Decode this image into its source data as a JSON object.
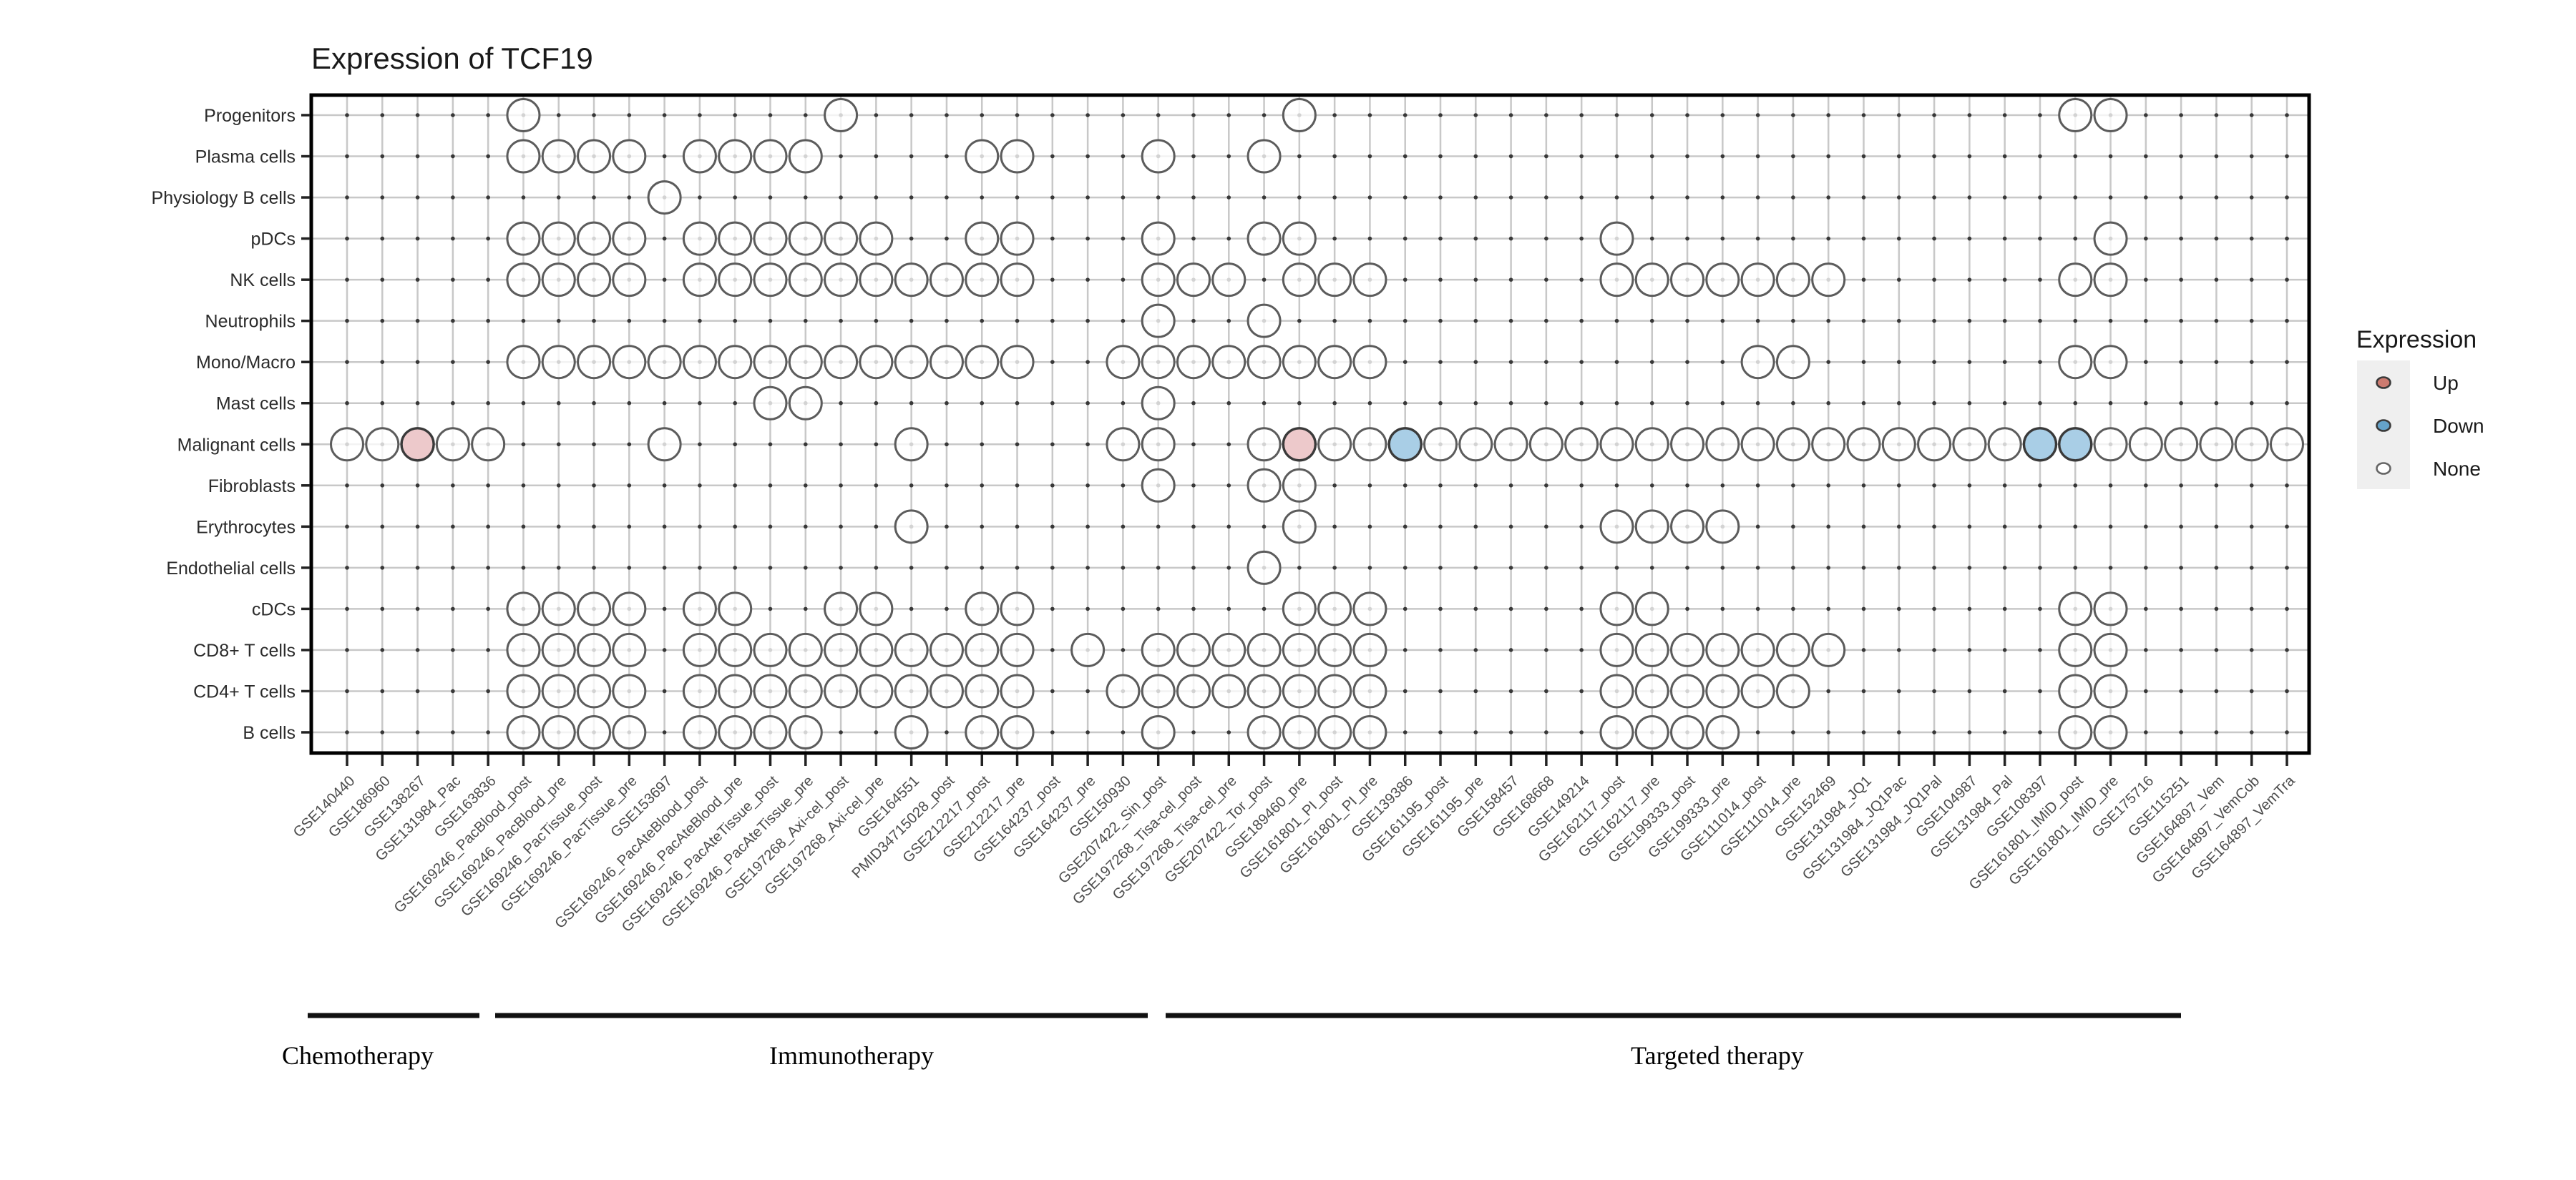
{
  "chart_data": {
    "type": "dot_matrix",
    "title": "Expression of TCF19",
    "legend": {
      "title": "Expression",
      "items": [
        {
          "label": "Up",
          "fill": "#cd7b70"
        },
        {
          "label": "Down",
          "fill": "#65a3ca"
        },
        {
          "label": "None",
          "fill": "#ffffff"
        }
      ]
    },
    "colors": {
      "up_fill": "#edc9cb",
      "down_fill": "#a9cee6",
      "none_fill": "#ffffff",
      "circle_stroke": "#5c5c5c",
      "colored_stroke": "#3a3a3a",
      "grid_line": "#c8c8c8",
      "grid_dot": "#383838",
      "border": "#000000"
    },
    "rows": [
      "Progenitors",
      "Plasma cells",
      "Physiology B cells",
      "pDCs",
      "NK cells",
      "Neutrophils",
      "Mono/Macro",
      "Mast cells",
      "Malignant cells",
      "Fibroblasts",
      "Erythrocytes",
      "Endothelial cells",
      "cDCs",
      "CD8+ T cells",
      "CD4+ T cells",
      "B cells"
    ],
    "columns": [
      "GSE140440",
      "GSE186960",
      "GSE138267",
      "GSE131984_Pac",
      "GSE163836",
      "GSE169246_PacBlood_post",
      "GSE169246_PacBlood_pre",
      "GSE169246_PacTissue_post",
      "GSE169246_PacTissue_pre",
      "GSE153697",
      "GSE169246_PacAteBlood_post",
      "GSE169246_PacAteBlood_pre",
      "GSE169246_PacAteTissue_post",
      "GSE169246_PacAteTissue_pre",
      "GSE197268_Axi-cel_post",
      "GSE197268_Axi-cel_pre",
      "GSE164551",
      "PMID34715028_post",
      "GSE212217_post",
      "GSE212217_pre",
      "GSE164237_post",
      "GSE164237_pre",
      "GSE150930",
      "GSE207422_Sin_post",
      "GSE197268_Tisa-cel_post",
      "GSE197268_Tisa-cel_pre",
      "GSE207422_Tor_post",
      "GSE189460_pre",
      "GSE161801_PI_post",
      "GSE161801_PI_pre",
      "GSE139386",
      "GSE161195_post",
      "GSE161195_pre",
      "GSE158457",
      "GSE168668",
      "GSE149214",
      "GSE162117_post",
      "GSE162117_pre",
      "GSE199333_post",
      "GSE199333_pre",
      "GSE111014_post",
      "GSE111014_pre",
      "GSE152469",
      "GSE131984_JQ1",
      "GSE131984_JQ1Pac",
      "GSE131984_JQ1Pal",
      "GSE104987",
      "GSE131984_Pal",
      "GSE108397",
      "GSE161801_IMiD_post",
      "GSE161801_IMiD_pre",
      "GSE175716",
      "GSE115251",
      "GSE164897_Vem",
      "GSE164897_VemCob",
      "GSE164897_VemTra"
    ],
    "groups": [
      {
        "label": "Chemotherapy",
        "start": 1,
        "end": 5
      },
      {
        "label": "Immunotherapy",
        "start": 6,
        "end": 23
      },
      {
        "label": "Targeted therapy",
        "start": 24,
        "end": 56
      }
    ],
    "presence": {
      "Progenitors": [
        6,
        15,
        28,
        50,
        51
      ],
      "Plasma cells": [
        6,
        7,
        8,
        9,
        11,
        12,
        13,
        14,
        19,
        20,
        24,
        27
      ],
      "Physiology B cells": [
        10
      ],
      "pDCs": [
        6,
        7,
        8,
        9,
        11,
        12,
        13,
        14,
        15,
        16,
        19,
        20,
        24,
        27,
        28,
        37,
        51
      ],
      "NK cells": [
        6,
        7,
        8,
        9,
        11,
        12,
        13,
        14,
        15,
        16,
        17,
        18,
        19,
        20,
        24,
        25,
        26,
        28,
        29,
        30,
        37,
        38,
        39,
        40,
        41,
        42,
        43,
        50,
        51
      ],
      "Neutrophils": [
        24,
        27
      ],
      "Mono/Macro": [
        6,
        7,
        8,
        9,
        10,
        11,
        12,
        13,
        14,
        15,
        16,
        17,
        18,
        19,
        20,
        23,
        24,
        25,
        26,
        27,
        28,
        29,
        30,
        41,
        42,
        50,
        51
      ],
      "Mast cells": [
        13,
        14,
        24
      ],
      "Malignant cells": [
        1,
        2,
        3,
        4,
        5,
        10,
        17,
        23,
        24,
        27,
        28,
        29,
        30,
        31,
        32,
        33,
        34,
        35,
        36,
        37,
        38,
        39,
        40,
        41,
        42,
        43,
        44,
        45,
        46,
        47,
        48,
        49,
        50,
        51,
        52,
        53,
        54,
        55,
        56
      ],
      "Fibroblasts": [
        24,
        27,
        28
      ],
      "Erythrocytes": [
        17,
        28,
        37,
        38,
        39,
        40
      ],
      "Endothelial cells": [
        27
      ],
      "cDCs": [
        6,
        7,
        8,
        9,
        11,
        12,
        15,
        16,
        19,
        20,
        28,
        29,
        30,
        37,
        38,
        50,
        51
      ],
      "CD8+ T cells": [
        6,
        7,
        8,
        9,
        11,
        12,
        13,
        14,
        15,
        16,
        17,
        18,
        19,
        20,
        22,
        24,
        25,
        26,
        27,
        28,
        29,
        30,
        37,
        38,
        39,
        40,
        41,
        42,
        43,
        50,
        51
      ],
      "CD4+ T cells": [
        6,
        7,
        8,
        9,
        11,
        12,
        13,
        14,
        15,
        16,
        17,
        18,
        19,
        20,
        23,
        24,
        25,
        26,
        27,
        28,
        29,
        30,
        37,
        38,
        39,
        40,
        41,
        42,
        50,
        51
      ],
      "B cells": [
        6,
        7,
        8,
        9,
        11,
        12,
        13,
        14,
        17,
        19,
        20,
        24,
        27,
        28,
        29,
        30,
        37,
        38,
        39,
        40,
        50,
        51
      ]
    },
    "expression": {
      "up": [
        {
          "row": "Malignant cells",
          "cols": [
            3,
            28
          ]
        }
      ],
      "down": [
        {
          "row": "Malignant cells",
          "cols": [
            31,
            49,
            50
          ]
        }
      ]
    }
  }
}
